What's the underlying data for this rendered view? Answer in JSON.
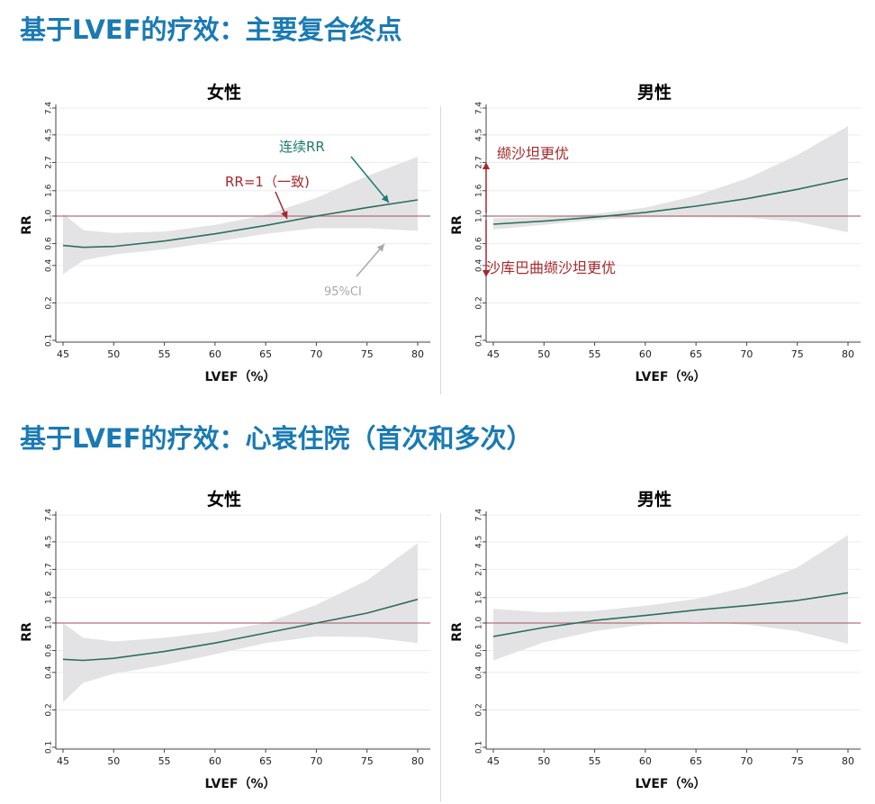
{
  "sections": [
    {
      "title": "基于LVEF的疗效：主要复合终点"
    },
    {
      "title": "基于LVEF的疗效：心衰住院（首次和多次）"
    }
  ],
  "colors": {
    "title_blue": "#1a7ab3",
    "curve": "#2e6e5c",
    "reference_line": "#b5707a",
    "ci_band": "#e3e3e5",
    "annotation_red": "#a5282c",
    "annotation_teal": "#1e7b6e",
    "annotation_grey": "#a8a8a8"
  },
  "chart_data": [
    {
      "type": "line",
      "title": "女性",
      "xlabel": "LVEF（%）",
      "ylabel": "RR",
      "x_ticks": [
        45,
        50,
        55,
        60,
        65,
        70,
        75,
        80
      ],
      "y_ticks": [
        "0.1",
        "0.2",
        "0.4",
        "0.6",
        "1.0",
        "1.6",
        "2.7",
        "4.5",
        "7.4"
      ],
      "y_scale": "log",
      "xlim": [
        45,
        80
      ],
      "ylim": [
        0.1,
        7.4
      ],
      "reference_line": 1.0,
      "series": [
        {
          "x": [
            45,
            47,
            50,
            55,
            60,
            65,
            70,
            75,
            80
          ],
          "rr": [
            0.58,
            0.56,
            0.57,
            0.63,
            0.72,
            0.84,
            1.0,
            1.17,
            1.35
          ],
          "ci_lower": [
            0.34,
            0.44,
            0.49,
            0.54,
            0.62,
            0.72,
            0.8,
            0.8,
            0.76
          ],
          "ci_upper": [
            1.05,
            0.77,
            0.73,
            0.75,
            0.85,
            1.02,
            1.4,
            2.1,
            3.0
          ]
        }
      ],
      "annotations": [
        {
          "text": "连续RR",
          "color": "teal"
        },
        {
          "text": "RR=1（一致)",
          "color": "red"
        },
        {
          "text": "95%CI",
          "color": "grey"
        }
      ]
    },
    {
      "type": "line",
      "title": "男性",
      "xlabel": "LVEF（%）",
      "ylabel": "RR",
      "x_ticks": [
        45,
        50,
        55,
        60,
        65,
        70,
        75,
        80
      ],
      "y_ticks": [
        "0.1",
        "0.2",
        "0.4",
        "0.6",
        "1.0",
        "1.6",
        "2.7",
        "4.5",
        "7.4"
      ],
      "y_scale": "log",
      "xlim": [
        45,
        80
      ],
      "ylim": [
        0.1,
        7.4
      ],
      "reference_line": 1.0,
      "series": [
        {
          "x": [
            45,
            50,
            55,
            60,
            65,
            70,
            75,
            80
          ],
          "rr": [
            0.86,
            0.91,
            0.98,
            1.07,
            1.2,
            1.38,
            1.64,
            2.0
          ],
          "ci_lower": [
            0.78,
            0.85,
            0.93,
            0.98,
            0.98,
            0.97,
            0.9,
            0.74
          ],
          "ci_upper": [
            0.96,
            0.98,
            1.04,
            1.17,
            1.46,
            2.0,
            3.1,
            5.3
          ]
        }
      ],
      "annotations": [
        {
          "text": "缬沙坦更优",
          "color": "red"
        },
        {
          "text": "沙库巴曲缬沙坦更优",
          "color": "red"
        }
      ]
    },
    {
      "type": "line",
      "title": "女性",
      "xlabel": "LVEF（%）",
      "ylabel": "RR",
      "x_ticks": [
        45,
        50,
        55,
        60,
        65,
        70,
        75,
        80
      ],
      "y_ticks": [
        "0.1",
        "0.2",
        "0.4",
        "0.6",
        "1.0",
        "1.6",
        "2.7",
        "4.5",
        "7.4"
      ],
      "y_scale": "log",
      "xlim": [
        45,
        80
      ],
      "ylim": [
        0.1,
        7.4
      ],
      "reference_line": 1.0,
      "series": [
        {
          "x": [
            45,
            47,
            50,
            55,
            60,
            65,
            70,
            75,
            80
          ],
          "rr": [
            0.51,
            0.5,
            0.52,
            0.59,
            0.69,
            0.83,
            1.0,
            1.2,
            1.55
          ],
          "ci_lower": [
            0.23,
            0.33,
            0.39,
            0.46,
            0.56,
            0.69,
            0.78,
            0.77,
            0.69
          ],
          "ci_upper": [
            1.0,
            0.76,
            0.71,
            0.76,
            0.85,
            1.0,
            1.4,
            2.2,
            4.4
          ]
        }
      ],
      "annotations": []
    },
    {
      "type": "line",
      "title": "男性",
      "xlabel": "LVEF（%）",
      "ylabel": "RR",
      "x_ticks": [
        45,
        50,
        55,
        60,
        65,
        70,
        75,
        80
      ],
      "y_ticks": [
        "0.1",
        "0.2",
        "0.4",
        "0.6",
        "1.0",
        "1.6",
        "2.7",
        "4.5",
        "7.4"
      ],
      "y_scale": "log",
      "xlim": [
        45,
        80
      ],
      "ylim": [
        0.1,
        7.4
      ],
      "reference_line": 1.0,
      "series": [
        {
          "x": [
            45,
            50,
            55,
            60,
            65,
            70,
            75,
            80
          ],
          "rr": [
            0.78,
            0.92,
            1.05,
            1.15,
            1.27,
            1.38,
            1.52,
            1.75
          ],
          "ci_lower": [
            0.5,
            0.7,
            0.86,
            0.97,
            1.02,
            0.97,
            0.86,
            0.68
          ],
          "ci_upper": [
            1.3,
            1.22,
            1.25,
            1.38,
            1.56,
            1.95,
            2.8,
            5.1
          ]
        }
      ],
      "annotations": []
    }
  ]
}
